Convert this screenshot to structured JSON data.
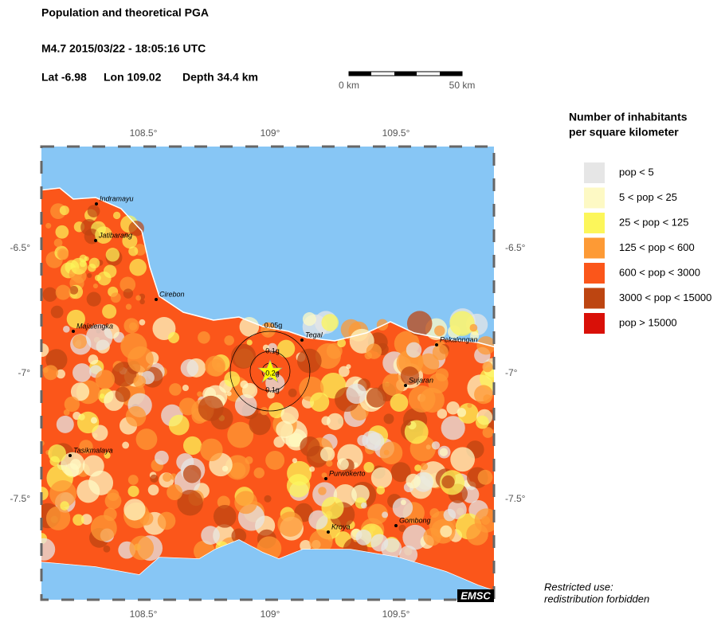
{
  "header": {
    "title": "Population and theoretical PGA",
    "event": "M4.7  2015/03/22 - 18:05:16 UTC",
    "lat": "Lat -6.98",
    "lon": "Lon 109.02",
    "depth": "Depth  34.4 km"
  },
  "scale_bar": {
    "start": "0 km",
    "end": "50 km"
  },
  "map": {
    "x_labels": [
      "108.5°",
      "109°",
      "109.5°"
    ],
    "y_labels": [
      "-6.5°",
      "-7°",
      "-7.5°"
    ],
    "sea_color": "#87c6f5",
    "cities": [
      "Indramayu",
      "Jatibarang",
      "Cirebon",
      "Majalengka",
      "Tegal",
      "Pekalongan",
      "Sujaran",
      "Tasikmalaya",
      "Purwokerto",
      "Kroya",
      "Gombong"
    ],
    "pga_labels": [
      "0.05g",
      "0.1g",
      "0.2g",
      "0.1g"
    ],
    "credit": "EMSC"
  },
  "legend": {
    "title": [
      "Number of inhabitants",
      "per square kilometer"
    ],
    "items": [
      {
        "label": "pop < 5",
        "color": "#e6e6e6"
      },
      {
        "label": "5 < pop < 25",
        "color": "#fdf9c4"
      },
      {
        "label": "25 < pop < 125",
        "color": "#fcf65a"
      },
      {
        "label": "125 < pop < 600",
        "color": "#fd9a35"
      },
      {
        "label": "600 < pop < 3000",
        "color": "#fb561a"
      },
      {
        "label": "3000 < pop < 15000",
        "color": "#bd4511"
      },
      {
        "label": "pop > 15000",
        "color": "#d91008"
      }
    ]
  },
  "notice": [
    "Restricted use:",
    "redistribution forbidden"
  ]
}
